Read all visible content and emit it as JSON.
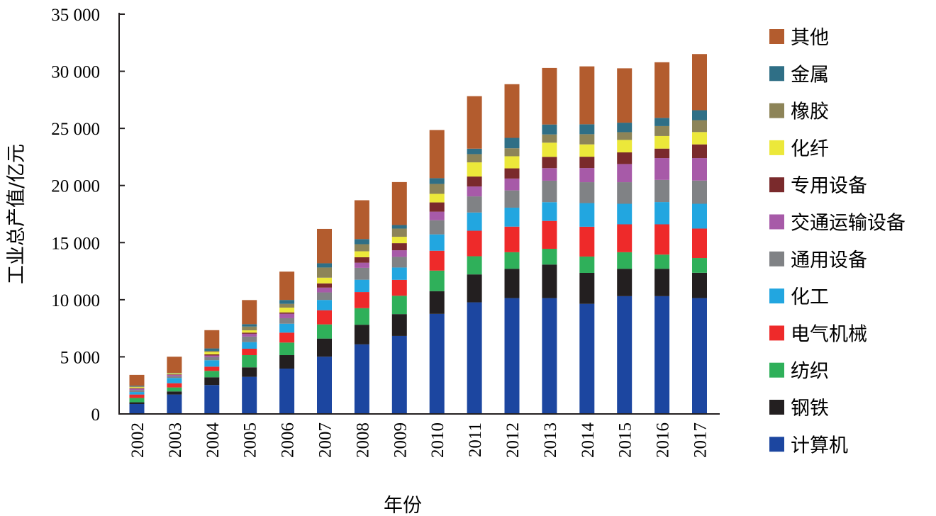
{
  "chart_data": {
    "type": "bar",
    "stacked": true,
    "title": "",
    "xlabel": "年份",
    "ylabel": "工业总产值/亿元",
    "ylim": [
      0,
      35000
    ],
    "yticks": [
      0,
      5000,
      10000,
      15000,
      20000,
      25000,
      30000,
      35000
    ],
    "ytick_labels": [
      "0",
      "5 000",
      "10 000",
      "15 000",
      "20 000",
      "25 000",
      "30 000",
      "35 000"
    ],
    "grid": false,
    "legend_position": "right",
    "categories": [
      "2002",
      "2003",
      "2004",
      "2005",
      "2006",
      "2007",
      "2008",
      "2009",
      "2010",
      "2011",
      "2012",
      "2013",
      "2014",
      "2015",
      "2016",
      "2017"
    ],
    "series": [
      {
        "name": "计算机",
        "color": "#1c46a0",
        "values": [
          870,
          1700,
          2530,
          3250,
          3970,
          5010,
          6090,
          6830,
          8760,
          9770,
          10140,
          10140,
          9640,
          10310,
          10310,
          10140
        ]
      },
      {
        "name": "钢铁",
        "color": "#231f20",
        "values": [
          150,
          270,
          680,
          830,
          1180,
          1590,
          1720,
          1910,
          1990,
          2445,
          2570,
          2940,
          2710,
          2400,
          2400,
          2220
        ]
      },
      {
        "name": "纺织",
        "color": "#2fb05a",
        "values": [
          380,
          350,
          560,
          1070,
          1100,
          1240,
          1450,
          1610,
          1800,
          1590,
          1450,
          1380,
          1430,
          1450,
          1240,
          1290
        ]
      },
      {
        "name": "电气机械",
        "color": "#ee2a2a",
        "values": [
          300,
          370,
          370,
          560,
          870,
          1240,
          1410,
          1390,
          1740,
          2235,
          2240,
          2440,
          2610,
          2440,
          2650,
          2580
        ]
      },
      {
        "name": "化工",
        "color": "#22a6e0",
        "values": [
          220,
          460,
          560,
          580,
          780,
          900,
          1080,
          1080,
          1430,
          1596,
          1660,
          1640,
          2070,
          1800,
          1950,
          2170
        ]
      },
      {
        "name": "通用设备",
        "color": "#808285",
        "values": [
          180,
          150,
          270,
          480,
          480,
          660,
          1040,
          930,
          1240,
          1410,
          1510,
          1880,
          1830,
          1890,
          1940,
          2030
        ]
      },
      {
        "name": "交通运输设备",
        "color": "#a75aa8",
        "values": [
          110,
          130,
          145,
          250,
          390,
          420,
          450,
          580,
          750,
          869,
          1040,
          1100,
          1240,
          1590,
          1910,
          1970
        ]
      },
      {
        "name": "专用设备",
        "color": "#7a2a2c",
        "values": [
          50,
          40,
          100,
          100,
          120,
          370,
          480,
          620,
          810,
          870,
          890,
          990,
          990,
          1020,
          830,
          1200
        ]
      },
      {
        "name": "化纤",
        "color": "#ece83a",
        "values": [
          90,
          80,
          210,
          200,
          420,
          500,
          520,
          560,
          750,
          1242,
          1060,
          1240,
          1080,
          1090,
          1100,
          1080
        ]
      },
      {
        "name": "橡胶",
        "color": "#8d8458",
        "values": [
          60,
          30,
          100,
          330,
          330,
          890,
          620,
          720,
          870,
          720,
          700,
          720,
          890,
          680,
          870,
          1040
        ]
      },
      {
        "name": "金属",
        "color": "#2f6f86",
        "values": [
          60,
          20,
          210,
          210,
          340,
          370,
          450,
          310,
          500,
          478,
          910,
          870,
          870,
          830,
          720,
          870
        ]
      },
      {
        "name": "其他",
        "color": "#b35c2e",
        "values": [
          950,
          1410,
          1600,
          2110,
          2480,
          3010,
          3400,
          3760,
          4220,
          4595,
          4700,
          4950,
          5070,
          4760,
          4870,
          4920
        ]
      }
    ]
  }
}
